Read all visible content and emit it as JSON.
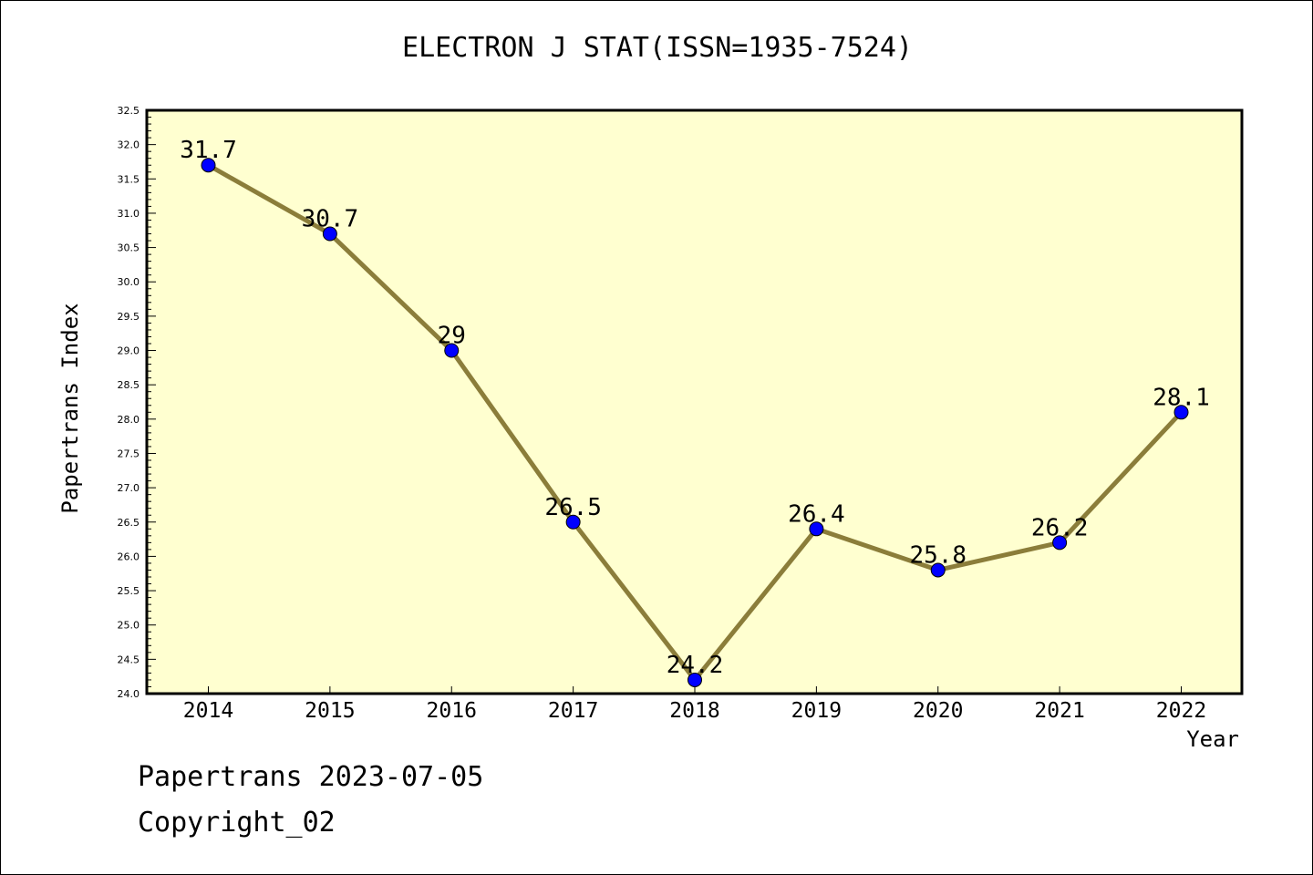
{
  "chart": {
    "title": "ELECTRON J STAT(ISSN=1935-7524)",
    "footer": {
      "line1": "Papertrans 2023-07-05",
      "line2": "Copyright_02"
    }
  },
  "chart_data": {
    "type": "line",
    "title": "ELECTRON J STAT(ISSN=1935-7524)",
    "xlabel": "Year",
    "ylabel": "Papertrans Index",
    "categories": [
      "2014",
      "2015",
      "2016",
      "2017",
      "2018",
      "2019",
      "2020",
      "2021",
      "2022"
    ],
    "values": [
      31.7,
      30.7,
      29,
      26.5,
      24.2,
      26.4,
      25.8,
      26.2,
      28.1
    ],
    "data_labels": [
      "31.7",
      "30.7",
      "29",
      "26.5",
      "24.2",
      "26.4",
      "25.8",
      "26.2",
      "28.1"
    ],
    "ylim": [
      24.0,
      32.5
    ],
    "yticks": [
      "24.0",
      "24.5",
      "25.0",
      "25.5",
      "26.0",
      "26.5",
      "27.0",
      "27.5",
      "28.0",
      "28.5",
      "29.0",
      "29.5",
      "30.0",
      "30.5",
      "31.0",
      "31.5",
      "32.0",
      "32.5"
    ],
    "grid": false,
    "legend": "none",
    "colors": {
      "plot_background": "#ffffd0",
      "line": "#8b7d3a",
      "marker": "#0000ff",
      "frame": "#000000"
    }
  }
}
